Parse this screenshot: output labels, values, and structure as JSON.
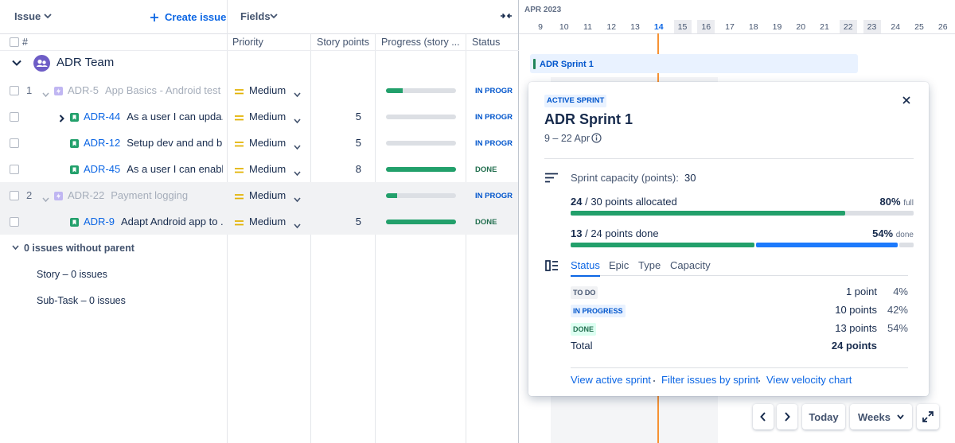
{
  "toolbar": {
    "issue": "Issue",
    "create": "Create issue",
    "fields": "Fields"
  },
  "columns": [
    "#",
    "Priority",
    "Story points",
    "Progress (story ...",
    "Status"
  ],
  "team": "ADR Team",
  "rows": [
    {
      "num": "1",
      "key": "ADR-5",
      "summary": "App Basics - Android test",
      "priority": "Medium",
      "progress": 24,
      "status": "IN PROGR",
      "status_color": "#0055cc"
    },
    {
      "key": "ADR-44",
      "summary": "As a user I can upda...",
      "priority": "Medium",
      "story_points": 5,
      "progress": 0,
      "status": "IN PROGR",
      "status_color": "#0055cc",
      "collapsed": true
    },
    {
      "key": "ADR-12",
      "summary": "Setup dev and and b...",
      "priority": "Medium",
      "story_points": 5,
      "progress": 0,
      "status": "IN PROGR",
      "status_color": "#0055cc"
    },
    {
      "key": "ADR-45",
      "summary": "As a user I can enabl...",
      "priority": "Medium",
      "story_points": 8,
      "progress": 100,
      "status": "DONE",
      "status_color": "#216e4e"
    },
    {
      "num": "2",
      "key": "ADR-22",
      "summary": "Payment logging",
      "priority": "Medium",
      "progress": 16,
      "status": "IN PROGR",
      "status_color": "#0055cc",
      "highlighted": true
    },
    {
      "key": "ADR-9",
      "summary": "Adapt Android app to ...",
      "priority": "Medium",
      "story_points": 5,
      "progress": 100,
      "status": "DONE",
      "status_color": "#216e4e",
      "highlighted": true
    }
  ],
  "ungrouped": {
    "title": "0 issues without parent",
    "items": [
      "Story – 0 issues",
      "Sub-Task – 0 issues"
    ]
  },
  "timeline": {
    "month": "APR 2023",
    "days": [
      9,
      10,
      11,
      12,
      13,
      14,
      15,
      16,
      17,
      18,
      19,
      20,
      21,
      22,
      23,
      24,
      25,
      26
    ],
    "today": 14,
    "weekends": [
      15,
      16,
      22,
      23
    ],
    "sprint_bar": "ADR Sprint 1"
  },
  "sprint": {
    "badge": "ACTIVE SPRINT",
    "name": "ADR Sprint 1",
    "dates": "9 – 22 Apr",
    "capacity_label": "Sprint capacity (points):",
    "capacity": 30,
    "allocated": 24,
    "allocated_text": "/ 30 points allocated",
    "full_pct": "80%",
    "full_label": "full",
    "done": 13,
    "done_text": "/ 24 points done",
    "done_pct": "54%",
    "done_label": "done",
    "tabs": [
      "Status",
      "Epic",
      "Type",
      "Capacity"
    ],
    "breakdown": [
      {
        "status": "TO DO",
        "color": "#44546f",
        "bg": "#f1f2f4",
        "bar": "#dcdfe4",
        "points": {
          "value": 1,
          "label": "1 point"
        },
        "percent": "4%"
      },
      {
        "status": "IN PROGRESS",
        "color": "#0055cc",
        "bg": "#e9f2ff",
        "bar": "#1d7afc",
        "points": {
          "value": 10,
          "label": "10 points"
        },
        "percent": "42%"
      },
      {
        "status": "DONE",
        "color": "#216e4e",
        "bg": "#dcfff1",
        "bar": "#22a06b",
        "points": {
          "value": 13,
          "label": "13 points"
        },
        "percent": "54%"
      }
    ],
    "total": {
      "label": "Total",
      "points": {
        "value": 24,
        "label": "24 points"
      }
    },
    "links": [
      "View active sprint",
      "Filter issues by sprint",
      "View velocity chart"
    ]
  },
  "controls": {
    "today": "Today",
    "scale": "Weeks"
  }
}
